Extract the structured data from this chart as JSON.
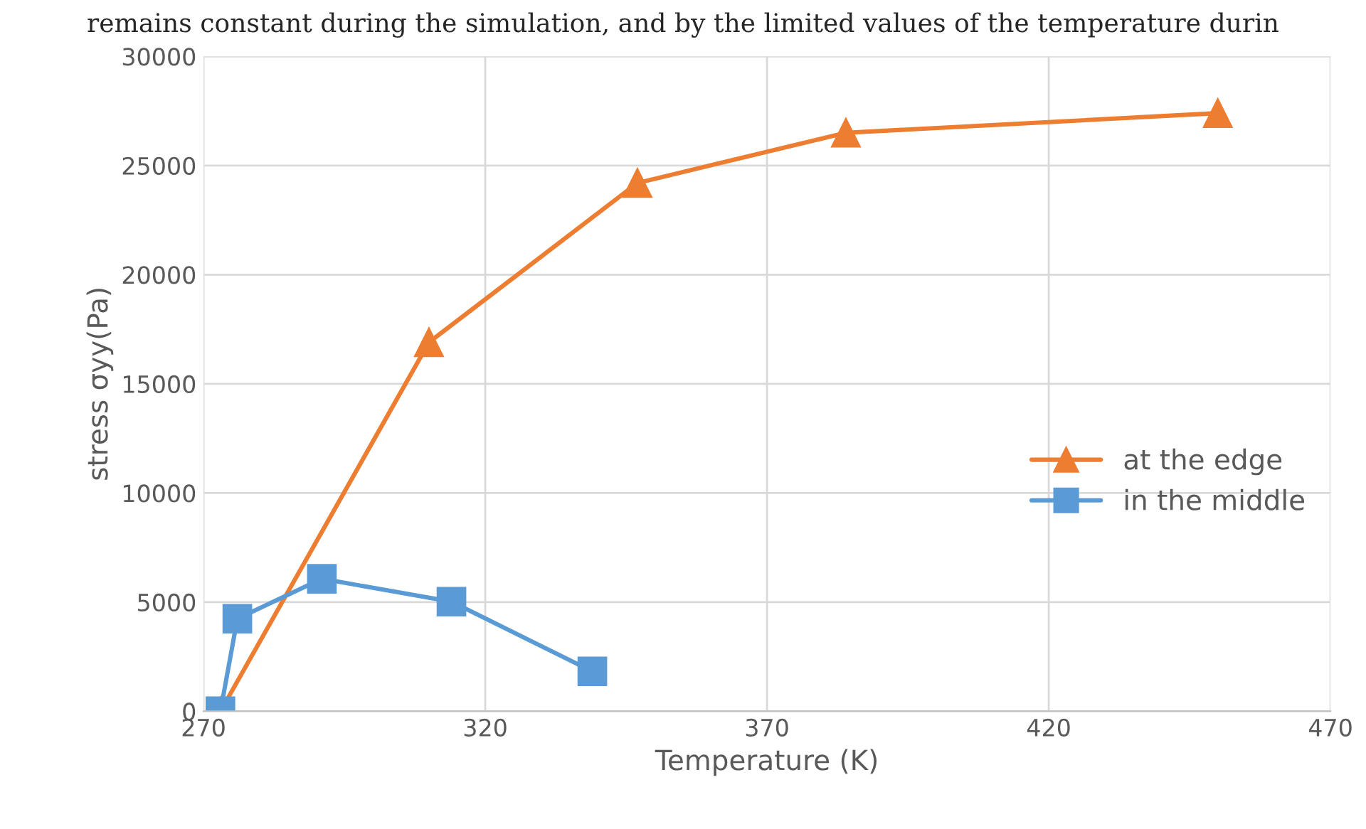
{
  "chart_data": {
    "type": "line",
    "xlabel": "Temperature (K)",
    "ylabel": "stress σyy(Pa)",
    "annotations": [
      "remains constant during the simulation, and by the limited values of the temperature durin"
    ],
    "series": [
      {
        "name": "at the edge",
        "color": "#ed7d31",
        "marker": "triangle",
        "x": [
          273,
          310,
          347,
          384,
          450
        ],
        "values": [
          0,
          16900,
          24200,
          26500,
          27400
        ]
      },
      {
        "name": "in the middle",
        "color": "#5b9bd5",
        "marker": "square",
        "x": [
          273,
          276,
          291,
          314,
          339
        ],
        "values": [
          0,
          4240,
          6070,
          5020,
          1830
        ]
      }
    ],
    "xlim": [
      270,
      470
    ],
    "xticks": [
      270,
      320,
      370,
      420,
      470
    ],
    "ylim": [
      0,
      30000
    ],
    "yticks": [
      0,
      5000,
      10000,
      15000,
      20000,
      25000,
      30000
    ],
    "grid": true,
    "legend": "right",
    "line_style": "solid"
  }
}
